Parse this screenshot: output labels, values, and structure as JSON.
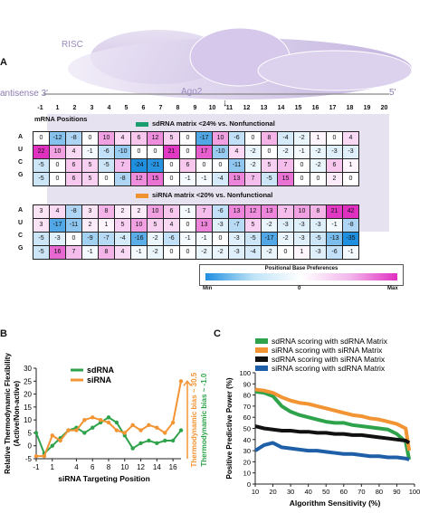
{
  "panels": {
    "a": "A",
    "b": "B",
    "c": "C"
  },
  "diagram": {
    "risc_label": "RISC",
    "ago2_label": "Ago2",
    "antisense_label": "antisense 3'",
    "five_prime_label": "5'",
    "positions": [
      "-1",
      "1",
      "2",
      "3",
      "4",
      "5",
      "6",
      "7",
      "8",
      "9",
      "10",
      "11",
      "12",
      "13",
      "14",
      "15",
      "16",
      "17",
      "18",
      "19",
      "20"
    ],
    "mrna_positions_label": "mRNA Positions"
  },
  "matrix1": {
    "legend": "sdRNA matrix <24% vs. Nonfunctional",
    "legend_color": "#1a9e6e",
    "rows": [
      {
        "base": "A",
        "values": [
          "0",
          "-12",
          "-8",
          "0",
          "10",
          "4",
          "6",
          "12",
          "5",
          "0",
          "-17",
          "10",
          "-6",
          "0",
          "8",
          "-4",
          "-2",
          "1",
          "0",
          "4"
        ]
      },
      {
        "base": "U",
        "values": [
          "22",
          "10",
          "4",
          "-1",
          "-6",
          "-10",
          "0",
          "0",
          "21",
          "0",
          "17",
          "-10",
          "4",
          "-2",
          "0",
          "-2",
          "-1",
          "-2",
          "-3",
          "-3"
        ]
      },
      {
        "base": "C",
        "values": [
          "-5",
          "0",
          "6",
          "5",
          "-5",
          "7",
          "-24",
          "-21",
          "0",
          "6",
          "0",
          "0",
          "-11",
          "-2",
          "5",
          "7",
          "0",
          "-2",
          "6",
          "1"
        ]
      },
      {
        "base": "G",
        "values": [
          "-5",
          "0",
          "6",
          "5",
          "0",
          "-8",
          "12",
          "15",
          "0",
          "-1",
          "-1",
          "-4",
          "13",
          "7",
          "-5",
          "15",
          "0",
          "0",
          "2",
          "0"
        ]
      }
    ]
  },
  "matrix2": {
    "legend": "siRNA matrix <20% vs. Nonfunctional",
    "legend_color": "#f0922f",
    "rows": [
      {
        "base": "A",
        "values": [
          "3",
          "4",
          "-8",
          "3",
          "8",
          "2",
          "2",
          "10",
          "6",
          "-1",
          "7",
          "-6",
          "13",
          "12",
          "13",
          "7",
          "10",
          "8",
          "21",
          "42"
        ]
      },
      {
        "base": "U",
        "values": [
          "3",
          "-17",
          "-11",
          "2",
          "1",
          "5",
          "10",
          "5",
          "4",
          "0",
          "13",
          "-3",
          "-7",
          "5",
          "-2",
          "-3",
          "-3",
          "-3",
          "-1",
          "-8"
        ]
      },
      {
        "base": "C",
        "values": [
          "-5",
          "-3",
          "0",
          "-9",
          "-7",
          "-4",
          "-16",
          "-2",
          "-6",
          "-1",
          "-1",
          "0",
          "-3",
          "-5",
          "-17",
          "-2",
          "-3",
          "-5",
          "-13",
          "-35"
        ]
      },
      {
        "base": "G",
        "values": [
          "-5",
          "16",
          "7",
          "-1",
          "8",
          "4",
          "-1",
          "-2",
          "0",
          "0",
          "-2",
          "-2",
          "-3",
          "-4",
          "-2",
          "0",
          "1",
          "-3",
          "-6",
          "-1"
        ]
      }
    ]
  },
  "color_scale": {
    "title": "Positional Base Preferences",
    "min": "Min",
    "mid": "0",
    "max": "Max"
  },
  "chart_data": [
    {
      "type": "line",
      "panel": "B",
      "x": [
        -1,
        0,
        1,
        2,
        3,
        4,
        5,
        6,
        7,
        8,
        9,
        10,
        11,
        12,
        13,
        14,
        15,
        16,
        17
      ],
      "xticks": [
        "-1",
        "1",
        "4",
        "6",
        "8",
        "10",
        "12",
        "14",
        "16"
      ],
      "xlabel": "siRNA Targeting Position",
      "ylabel": "Relative Thermodynamic Flexibility (Active/Non-active)",
      "ylim": [
        -5,
        30
      ],
      "yticks": [
        "-5",
        "0",
        "5",
        "10",
        "15",
        "20",
        "25",
        "30"
      ],
      "legend": "top-left",
      "series": [
        {
          "name": "sdRNA",
          "color": "#2fa34c",
          "values": [
            5,
            -3,
            0,
            3,
            6,
            7,
            5,
            7,
            9,
            11,
            9,
            4,
            -1,
            1,
            2,
            1,
            2,
            2,
            6
          ]
        },
        {
          "name": "siRNA",
          "color": "#f29433",
          "values": [
            -4,
            -4,
            4,
            2,
            6,
            6,
            10,
            11,
            10,
            9,
            6,
            5,
            8,
            6,
            8,
            7,
            5,
            9,
            25
          ]
        }
      ],
      "annotations": [
        {
          "text": "Thermodynamic bias ~ 30.5",
          "color": "#f29433"
        },
        {
          "text": "Thermodynamic bias ~ -1.0",
          "color": "#2fa34c"
        }
      ]
    },
    {
      "type": "line",
      "panel": "C",
      "xlabel": "Algorithm Sensitivity (%)",
      "ylabel": "Positive Predictive Power (%)",
      "xlim": [
        0,
        100
      ],
      "ylim": [
        0,
        100
      ],
      "xticks": [
        "10",
        "20",
        "30",
        "40",
        "50",
        "60",
        "70",
        "80",
        "90",
        "100"
      ],
      "yticks": [
        "0",
        "10",
        "20",
        "30",
        "40",
        "50",
        "60",
        "70",
        "80",
        "90",
        "100"
      ],
      "legend": "top",
      "series": [
        {
          "name": "sdRNA scoring with sdRNA Matrix",
          "color": "#2fa34c",
          "x": [
            10,
            15,
            20,
            25,
            30,
            35,
            40,
            45,
            50,
            55,
            60,
            65,
            70,
            75,
            80,
            85,
            90,
            95,
            97
          ],
          "values": [
            83,
            82,
            79,
            70,
            65,
            62,
            60,
            58,
            56,
            55,
            55,
            53,
            52,
            51,
            50,
            49,
            45,
            38,
            22
          ]
        },
        {
          "name": "siRNA scoring with siRNA Matrix",
          "color": "#f29433",
          "x": [
            10,
            15,
            20,
            25,
            30,
            35,
            40,
            45,
            50,
            55,
            60,
            65,
            70,
            75,
            80,
            85,
            90,
            95,
            97
          ],
          "values": [
            85,
            84,
            82,
            78,
            75,
            73,
            72,
            70,
            68,
            66,
            64,
            62,
            61,
            59,
            58,
            56,
            54,
            50,
            30
          ]
        },
        {
          "name": "sdRNA scoring with siRNA Matrix",
          "color": "#111111",
          "x": [
            10,
            15,
            20,
            25,
            30,
            35,
            40,
            45,
            50,
            55,
            60,
            65,
            70,
            75,
            80,
            85,
            90,
            95,
            97
          ],
          "values": [
            52,
            50,
            49,
            48,
            48,
            47,
            47,
            46,
            46,
            45,
            45,
            44,
            44,
            43,
            42,
            41,
            40,
            39,
            37
          ]
        },
        {
          "name": "siRNA scoring with sdRNA Matrix",
          "color": "#1f5fa8",
          "x": [
            10,
            15,
            20,
            25,
            30,
            35,
            40,
            45,
            50,
            55,
            60,
            65,
            70,
            75,
            80,
            85,
            90,
            95,
            97
          ],
          "values": [
            30,
            35,
            37,
            33,
            32,
            31,
            30,
            30,
            29,
            28,
            27,
            27,
            26,
            25,
            25,
            24,
            24,
            23,
            22
          ]
        }
      ]
    }
  ]
}
